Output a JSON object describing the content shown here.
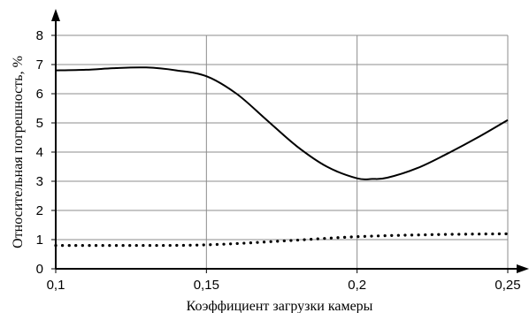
{
  "chart_data": {
    "type": "line",
    "title": "",
    "xlabel": "Коэффициент загрузки камеры",
    "ylabel": "Относительная погрешность, %",
    "xlim": [
      0.1,
      0.25
    ],
    "ylim": [
      0,
      8
    ],
    "grid": true,
    "x_ticks": [
      0.1,
      0.15,
      0.2,
      0.25
    ],
    "x_tick_labels": [
      "0,1",
      "0,15",
      "0,2",
      "0,25"
    ],
    "y_ticks": [
      0,
      1,
      2,
      3,
      4,
      5,
      6,
      7,
      8
    ],
    "y_tick_labels": [
      "0",
      "1",
      "2",
      "3",
      "4",
      "5",
      "6",
      "7",
      "8"
    ],
    "series": [
      {
        "style": "solid",
        "color": "#000000",
        "x": [
          0.1,
          0.11,
          0.12,
          0.13,
          0.14,
          0.15,
          0.16,
          0.17,
          0.18,
          0.19,
          0.2,
          0.205,
          0.21,
          0.22,
          0.23,
          0.24,
          0.25
        ],
        "y": [
          6.8,
          6.82,
          6.88,
          6.9,
          6.8,
          6.6,
          6.0,
          5.1,
          4.2,
          3.5,
          3.1,
          3.08,
          3.12,
          3.45,
          3.95,
          4.5,
          5.1
        ]
      },
      {
        "style": "dotted",
        "color": "#000000",
        "x": [
          0.1,
          0.125,
          0.15,
          0.175,
          0.2,
          0.225,
          0.25
        ],
        "y": [
          0.8,
          0.8,
          0.82,
          0.95,
          1.1,
          1.17,
          1.2
        ]
      }
    ]
  }
}
